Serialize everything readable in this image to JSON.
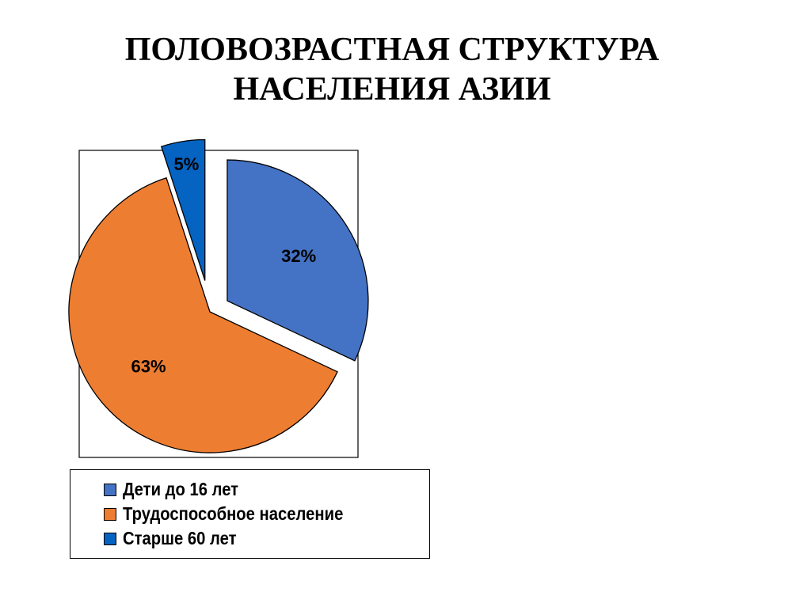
{
  "title": {
    "line1": "ПОЛОВОЗРАСТНАЯ СТРУКТУРА",
    "line2": "НАСЕЛЕНИЯ  АЗИИ"
  },
  "chart_data": {
    "type": "pie",
    "title": "ПОЛОВОЗРАСТНАЯ СТРУКТУРА НАСЕЛЕНИЯ  АЗИИ",
    "categories": [
      "Дети до 16 лет",
      "Трудоспособное население",
      "Старше 60 лет"
    ],
    "values": [
      32,
      63,
      5
    ],
    "data_labels": [
      "32%",
      "63%",
      "5%"
    ],
    "colors": [
      "#4472C4",
      "#ED7D31",
      "#0563C1"
    ],
    "exploded": true,
    "legend_position": "bottom"
  }
}
